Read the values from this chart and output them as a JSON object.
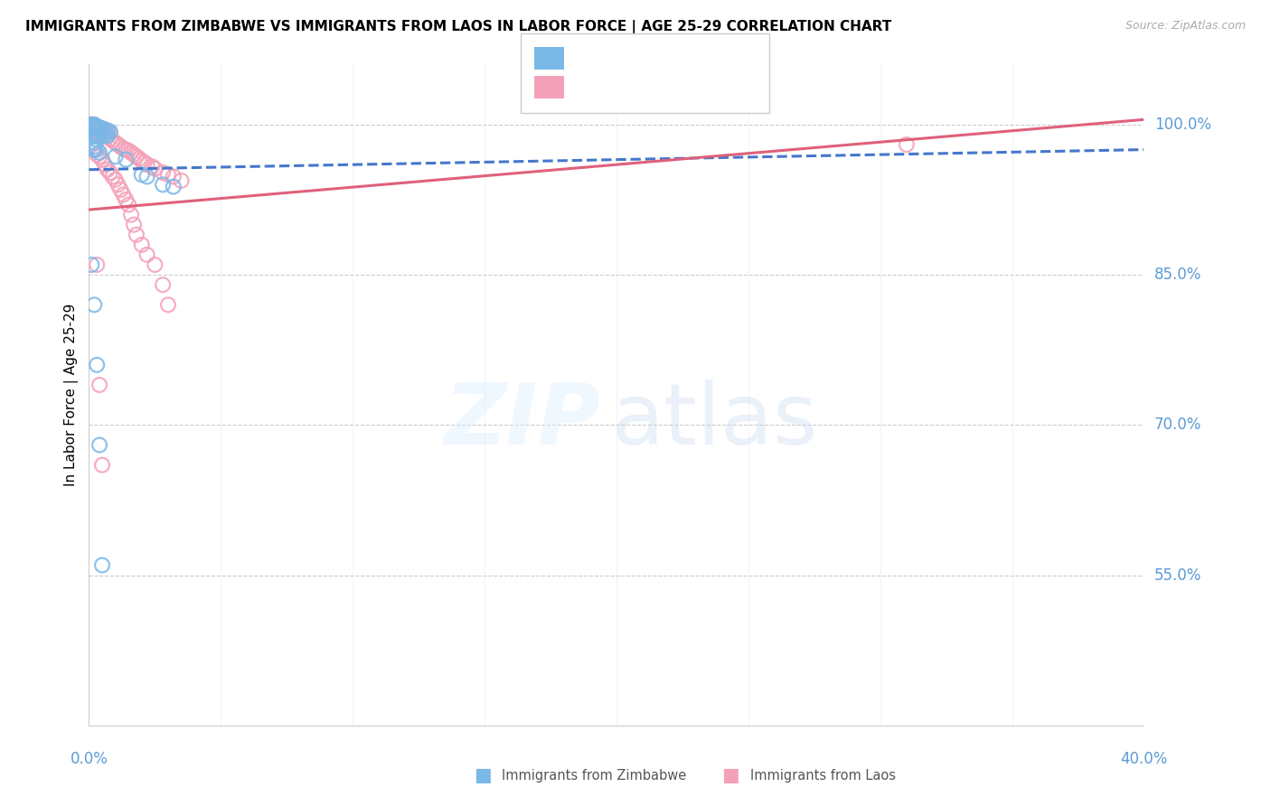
{
  "title": "IMMIGRANTS FROM ZIMBABWE VS IMMIGRANTS FROM LAOS IN LABOR FORCE | AGE 25-29 CORRELATION CHART",
  "source": "Source: ZipAtlas.com",
  "ylabel": "In Labor Force | Age 25-29",
  "xmin": 0.0,
  "xmax": 0.4,
  "ymin": 0.4,
  "ymax": 1.06,
  "ytick_vals": [
    0.55,
    0.7,
    0.85,
    1.0
  ],
  "ytick_labels": [
    "55.0%",
    "70.0%",
    "85.0%",
    "100.0%"
  ],
  "color_zimbabwe": "#7ab8e8",
  "color_laos": "#f4a0b8",
  "color_zim_line": "#4477cc",
  "color_laos_line": "#e0607a",
  "color_axis": "#5b9bd5",
  "zim_x": [
    0.001,
    0.001,
    0.001,
    0.001,
    0.002,
    0.002,
    0.002,
    0.002,
    0.002,
    0.003,
    0.003,
    0.003,
    0.003,
    0.003,
    0.004,
    0.004,
    0.004,
    0.005,
    0.005,
    0.006,
    0.006,
    0.007,
    0.007,
    0.008,
    0.002,
    0.002,
    0.003,
    0.004,
    0.01,
    0.014,
    0.02,
    0.022,
    0.028,
    0.032,
    0.001,
    0.002,
    0.003,
    0.004,
    0.005
  ],
  "zim_y": [
    1.0,
    1.0,
    0.998,
    0.996,
    1.0,
    0.998,
    0.996,
    0.992,
    0.975,
    0.998,
    0.996,
    0.992,
    0.988,
    0.985,
    0.997,
    0.994,
    0.988,
    0.996,
    0.992,
    0.995,
    0.99,
    0.994,
    0.989,
    0.993,
    0.982,
    0.978,
    0.975,
    0.972,
    0.968,
    0.965,
    0.95,
    0.948,
    0.94,
    0.938,
    0.86,
    0.82,
    0.76,
    0.68,
    0.56
  ],
  "laos_x": [
    0.001,
    0.001,
    0.001,
    0.002,
    0.002,
    0.002,
    0.002,
    0.003,
    0.003,
    0.003,
    0.003,
    0.004,
    0.004,
    0.004,
    0.005,
    0.005,
    0.005,
    0.006,
    0.006,
    0.007,
    0.007,
    0.008,
    0.008,
    0.009,
    0.01,
    0.011,
    0.012,
    0.013,
    0.014,
    0.015,
    0.016,
    0.017,
    0.018,
    0.019,
    0.02,
    0.021,
    0.022,
    0.024,
    0.025,
    0.028,
    0.03,
    0.032,
    0.035,
    0.002,
    0.003,
    0.004,
    0.005,
    0.006,
    0.007,
    0.008,
    0.009,
    0.01,
    0.011,
    0.012,
    0.013,
    0.014,
    0.015,
    0.016,
    0.017,
    0.018,
    0.02,
    0.022,
    0.025,
    0.028,
    0.03,
    0.31,
    0.003,
    0.004,
    0.005
  ],
  "laos_y": [
    1.0,
    1.0,
    0.998,
    1.0,
    0.998,
    0.996,
    0.994,
    0.998,
    0.996,
    0.994,
    0.992,
    0.997,
    0.995,
    0.99,
    0.996,
    0.994,
    0.988,
    0.995,
    0.99,
    0.993,
    0.988,
    0.992,
    0.986,
    0.984,
    0.982,
    0.98,
    0.978,
    0.976,
    0.975,
    0.974,
    0.972,
    0.97,
    0.968,
    0.966,
    0.964,
    0.962,
    0.96,
    0.958,
    0.956,
    0.952,
    0.95,
    0.948,
    0.944,
    0.975,
    0.97,
    0.968,
    0.965,
    0.96,
    0.955,
    0.952,
    0.948,
    0.945,
    0.94,
    0.935,
    0.93,
    0.925,
    0.92,
    0.91,
    0.9,
    0.89,
    0.88,
    0.87,
    0.86,
    0.84,
    0.82,
    0.98,
    0.86,
    0.74,
    0.66
  ]
}
